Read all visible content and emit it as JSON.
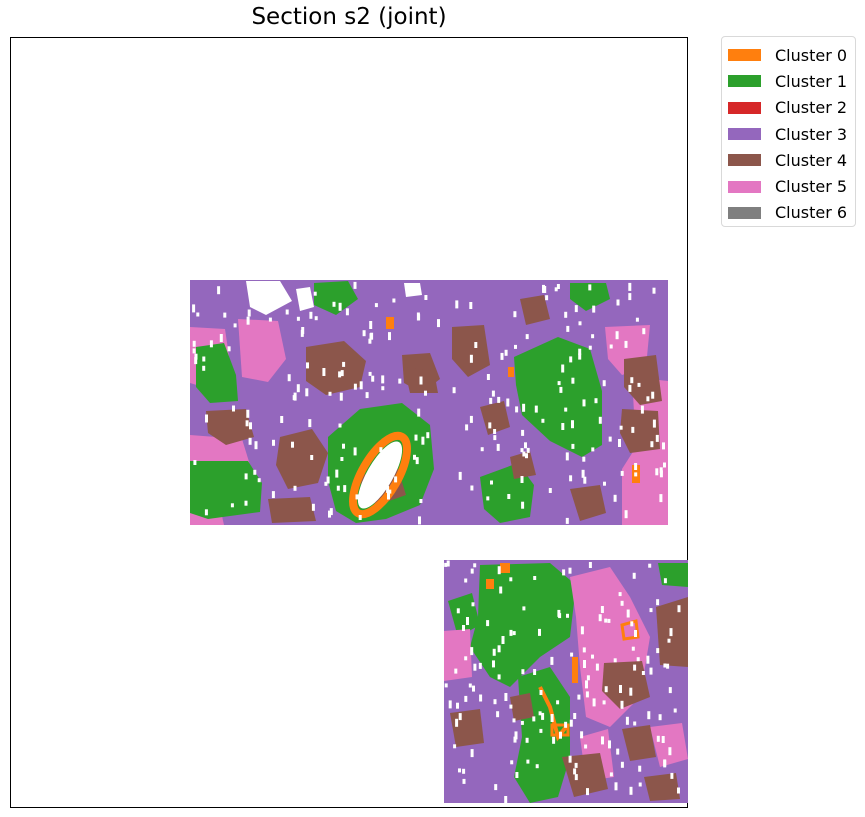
{
  "chart_data": {
    "type": "heatmap",
    "title": "Section s2 (joint)",
    "xlabel": "",
    "ylabel": "",
    "axes_ticks": "hidden",
    "grid": false,
    "legend": {
      "placement": "outside-top-right",
      "entries": [
        {
          "label": "Cluster 0",
          "color": "#ff7f0e"
        },
        {
          "label": "Cluster 1",
          "color": "#2ca02c"
        },
        {
          "label": "Cluster 2",
          "color": "#d62728"
        },
        {
          "label": "Cluster 3",
          "color": "#9467bd"
        },
        {
          "label": "Cluster 4",
          "color": "#8c564b"
        },
        {
          "label": "Cluster 5",
          "color": "#e377c2"
        },
        {
          "label": "Cluster 6",
          "color": "#7f7f7f"
        }
      ]
    },
    "colors": {
      "cluster_0": "#ff7f0e",
      "cluster_1": "#2ca02c",
      "cluster_3": "#9467bd",
      "cluster_4": "#8c564b",
      "cluster_5": "#e377c2",
      "background": "#ffffff"
    }
  }
}
